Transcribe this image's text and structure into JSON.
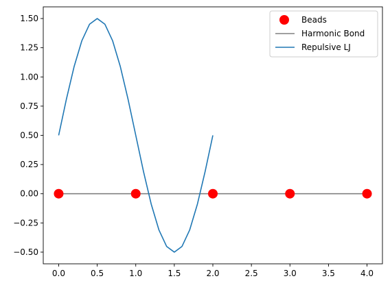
{
  "chart_data": {
    "type": "line",
    "x_ticks": [
      "0.0",
      "0.5",
      "1.0",
      "1.5",
      "2.0",
      "2.5",
      "3.0",
      "3.5",
      "4.0"
    ],
    "y_ticks": [
      "−0.50",
      "−0.25",
      "0.00",
      "0.25",
      "0.50",
      "0.75",
      "1.00",
      "1.25",
      "1.50"
    ],
    "xlim": [
      -0.2,
      4.2
    ],
    "ylim": [
      -0.6,
      1.6
    ],
    "grid": false,
    "legend_position": "top-right",
    "series": [
      {
        "name": "Beads",
        "kind": "markers",
        "color": "#ff0000",
        "x": [
          0,
          1,
          2,
          3,
          4
        ],
        "y": [
          0,
          0,
          0,
          0,
          0
        ]
      },
      {
        "name": "Harmonic Bond",
        "kind": "line",
        "color": "#808080",
        "x": [
          0,
          1,
          2,
          3,
          4
        ],
        "y": [
          0,
          0,
          0,
          0,
          0
        ]
      },
      {
        "name": "Repulsive LJ",
        "kind": "line",
        "color": "#1f77b4",
        "x": [
          0.0,
          0.1,
          0.2,
          0.3,
          0.4,
          0.5,
          0.6,
          0.7,
          0.8,
          0.9,
          1.0,
          1.1,
          1.2,
          1.3,
          1.4,
          1.5,
          1.6,
          1.7,
          1.8,
          1.9,
          2.0
        ],
        "y": [
          0.5,
          0.809,
          1.088,
          1.309,
          1.451,
          1.5,
          1.451,
          1.309,
          1.088,
          0.809,
          0.5,
          0.191,
          -0.088,
          -0.309,
          -0.451,
          -0.5,
          -0.451,
          -0.309,
          -0.088,
          0.191,
          0.5
        ]
      }
    ]
  }
}
